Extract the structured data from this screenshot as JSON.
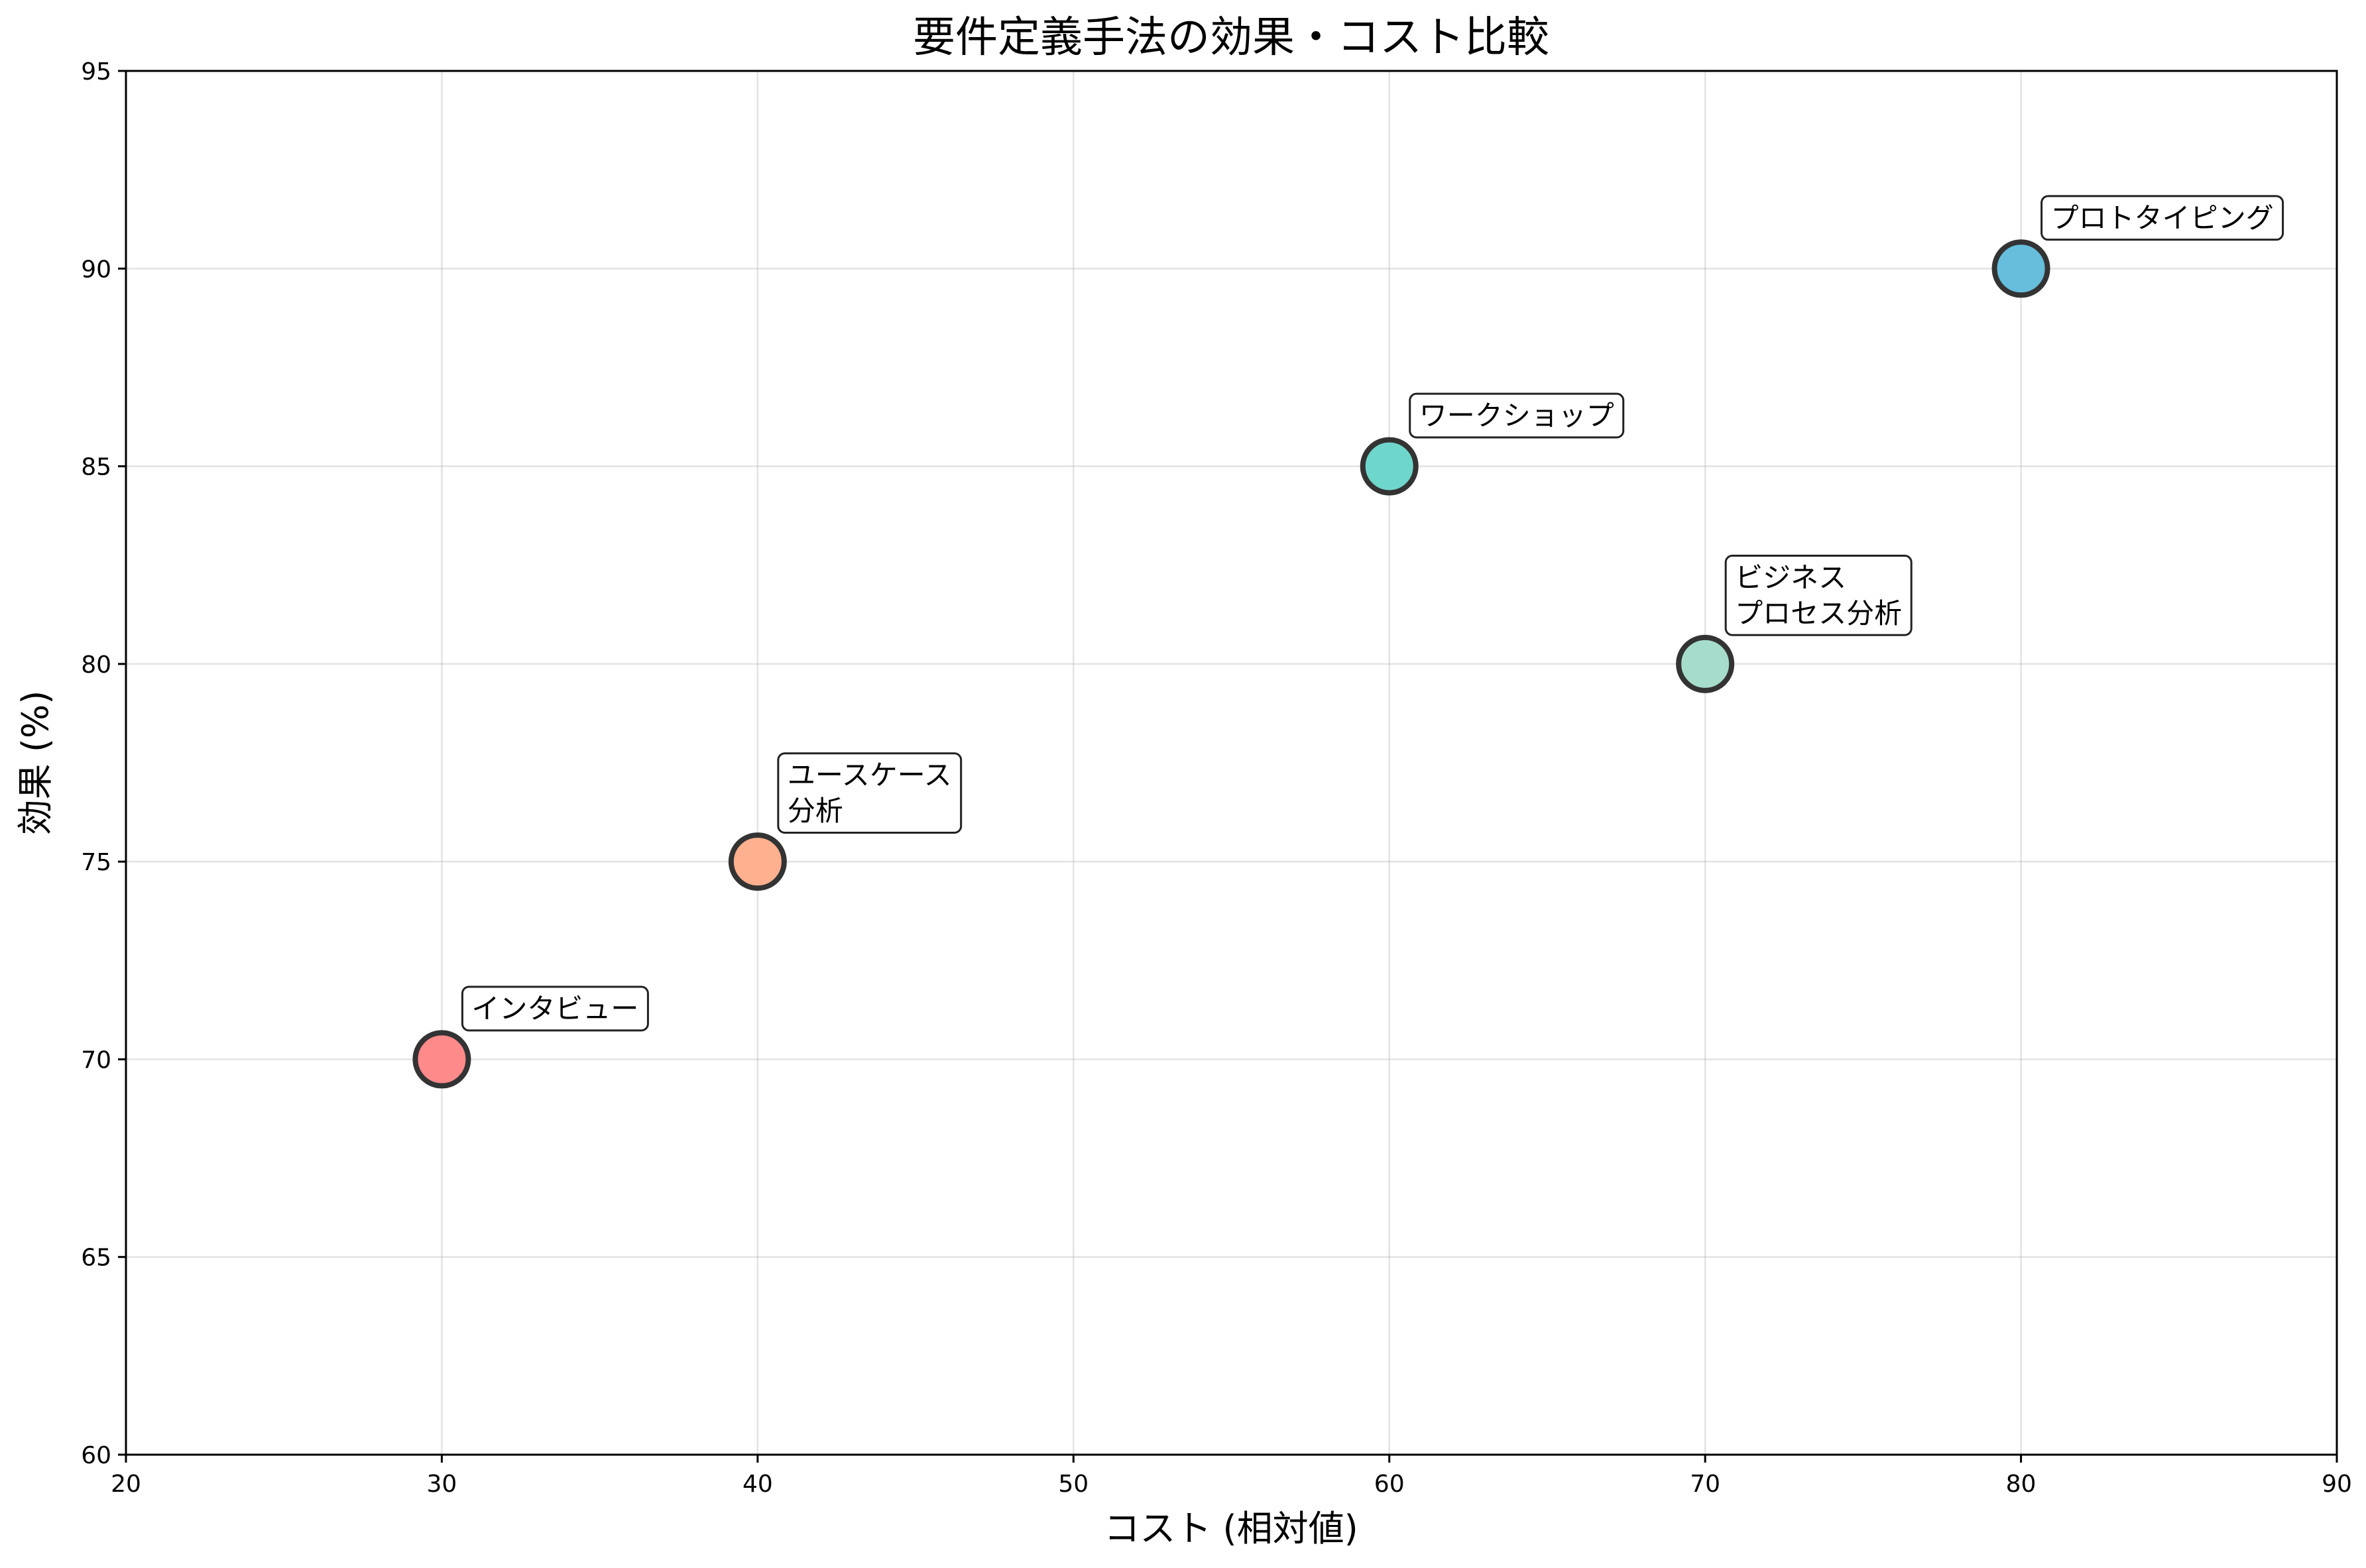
{
  "chart_data": {
    "type": "scatter",
    "title": "要件定義手法の効果・コスト比較",
    "xlabel": "コスト (相対値)",
    "ylabel": "効果 (%)",
    "xlim": [
      20,
      90
    ],
    "ylim": [
      60,
      95
    ],
    "xticks": [
      20,
      30,
      40,
      50,
      60,
      70,
      80,
      90
    ],
    "yticks": [
      60,
      65,
      70,
      75,
      80,
      85,
      90,
      95
    ],
    "grid": true,
    "points": [
      {
        "label": "インタビュー",
        "x": 30,
        "y": 70,
        "color": "#FF8A8A"
      },
      {
        "label": "ユースケース\n分析",
        "x": 40,
        "y": 75,
        "color": "#FFB08F"
      },
      {
        "label": "ワークショップ",
        "x": 60,
        "y": 85,
        "color": "#6FD6CB"
      },
      {
        "label": "ビジネス\nプロセス分析",
        "x": 70,
        "y": 80,
        "color": "#A6DCCC"
      },
      {
        "label": "プロトタイピング",
        "x": 80,
        "y": 90,
        "color": "#66BEDC"
      }
    ],
    "colors": {
      "marker_edge": "#333333",
      "grid": "#b0b0b0",
      "axes": "#000000"
    }
  }
}
